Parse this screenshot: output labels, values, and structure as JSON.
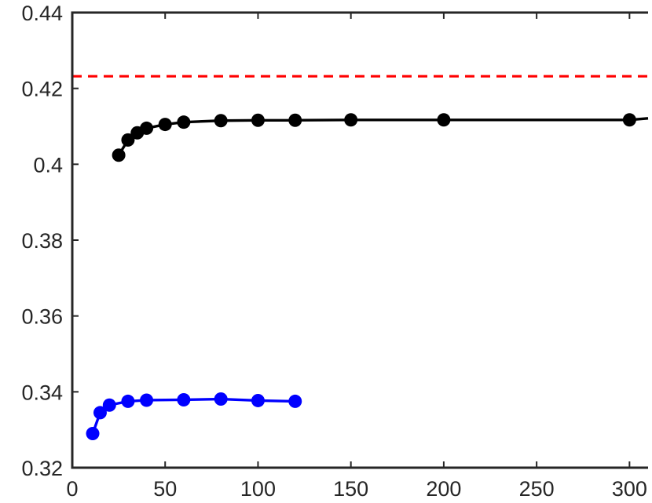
{
  "chart_data": {
    "type": "line",
    "title": "",
    "xlabel": "",
    "ylabel": "",
    "xlim": [
      0,
      310
    ],
    "ylim": [
      0.32,
      0.44
    ],
    "grid": false,
    "x_ticks": [
      0,
      50,
      100,
      150,
      200,
      250,
      300
    ],
    "x_tick_labels": [
      "0",
      "50",
      "100",
      "150",
      "200",
      "250",
      "300"
    ],
    "y_ticks": [
      0.32,
      0.34,
      0.36,
      0.38,
      0.4,
      0.42,
      0.44
    ],
    "y_tick_labels": [
      "0.32",
      "0.34",
      "0.36",
      "0.38",
      "0.4",
      "0.42",
      "0.44"
    ],
    "reference_line": {
      "y": 0.4232,
      "color": "#ff0000",
      "style": "dashed"
    },
    "series": [
      {
        "color": "#000000",
        "x": [
          25,
          30,
          35,
          40,
          50,
          60,
          80,
          100,
          120,
          150,
          200,
          300,
          310
        ],
        "y": [
          0.4024,
          0.4064,
          0.4083,
          0.4095,
          0.4105,
          0.4111,
          0.4115,
          0.4116,
          0.4116,
          0.4117,
          0.4117,
          0.4117,
          0.4121
        ],
        "markers": [
          true,
          true,
          true,
          true,
          true,
          true,
          true,
          true,
          true,
          true,
          true,
          true,
          false
        ]
      },
      {
        "color": "#0000ff",
        "x": [
          11,
          15,
          20,
          30,
          40,
          60,
          80,
          100,
          120
        ],
        "y": [
          0.329,
          0.3345,
          0.3365,
          0.3375,
          0.3378,
          0.3379,
          0.3381,
          0.3377,
          0.3375
        ],
        "markers": [
          true,
          true,
          true,
          true,
          true,
          true,
          true,
          true,
          true
        ]
      }
    ]
  }
}
